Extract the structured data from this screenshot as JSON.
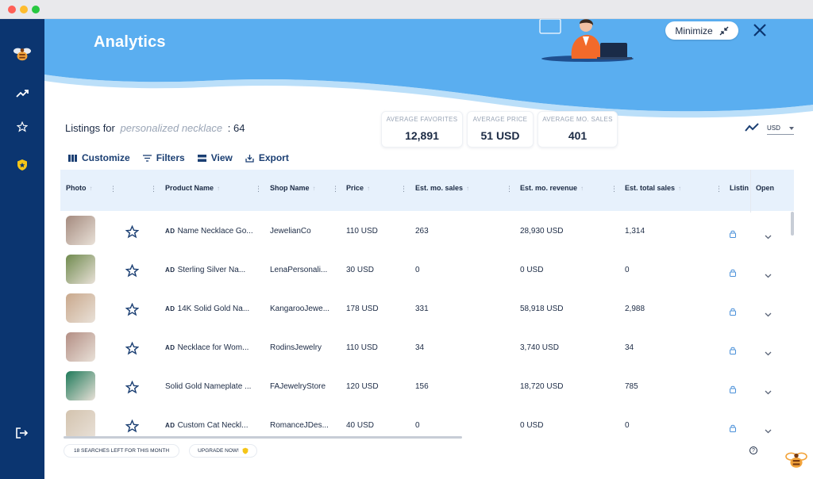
{
  "header": {
    "title": "Analytics",
    "minimize_label": "Minimize"
  },
  "listings": {
    "prefix": "Listings for",
    "keyword": "personalized necklace",
    "count": ": 64"
  },
  "stats": [
    {
      "label": "AVERAGE FAVORITES",
      "value": "12,891"
    },
    {
      "label": "AVERAGE PRICE",
      "value": "51 USD"
    },
    {
      "label": "AVERAGE MO. SALES",
      "value": "401"
    }
  ],
  "currency": "USD",
  "toolbar": {
    "customize": "Customize",
    "filters": "Filters",
    "view": "View",
    "export": "Export"
  },
  "columns": {
    "photo": "Photo",
    "product_name": "Product Name",
    "shop_name": "Shop Name",
    "price": "Price",
    "est_mo_sales": "Est. mo. sales",
    "est_mo_revenue": "Est. mo. revenue",
    "est_total_sales": "Est. total sales",
    "listing": "Listin",
    "open": "Open"
  },
  "ad_label": "AD",
  "rows": [
    {
      "ad": true,
      "product": "Name Necklace Go...",
      "shop": "JewelianCo",
      "price": "110 USD",
      "sales": "263",
      "revenue": "28,930 USD",
      "total": "1,314",
      "thumb_color": "#a48a7e"
    },
    {
      "ad": true,
      "product": "Sterling Silver Na...",
      "shop": "LenaPersonali...",
      "price": "30 USD",
      "sales": "0",
      "revenue": "0 USD",
      "total": "0",
      "thumb_color": "#6f8a4e"
    },
    {
      "ad": true,
      "product": "14K Solid Gold Na...",
      "shop": "KangarooJewe...",
      "price": "178 USD",
      "sales": "331",
      "revenue": "58,918 USD",
      "total": "2,988",
      "thumb_color": "#c9a88c"
    },
    {
      "ad": true,
      "product": "Necklace for Wom...",
      "shop": "RodinsJewelry",
      "price": "110 USD",
      "sales": "34",
      "revenue": "3,740 USD",
      "total": "34",
      "thumb_color": "#b38e84"
    },
    {
      "ad": false,
      "product": "Solid Gold Nameplate ...",
      "shop": "FAJewelryStore",
      "price": "120 USD",
      "sales": "156",
      "revenue": "18,720 USD",
      "total": "785",
      "thumb_color": "#1f7a5a"
    },
    {
      "ad": true,
      "product": "Custom Cat Neckl...",
      "shop": "RomanceJDes...",
      "price": "40 USD",
      "sales": "0",
      "revenue": "0 USD",
      "total": "0",
      "thumb_color": "#d3c3ae"
    }
  ],
  "footer": {
    "searches_left": "18 SEARCHES LEFT FOR THIS MONTH",
    "upgrade": "UPGRADE NOW!",
    "help": "?"
  },
  "icons": {
    "sidebar": [
      "bee-logo-icon",
      "trending-icon",
      "star-icon",
      "shield-icon",
      "logout-icon"
    ],
    "header": [
      "minimize-icon",
      "close-icon"
    ]
  },
  "colors": {
    "sidebar_bg": "#0b3570",
    "header_blue": "#5aaef0",
    "accent": "#1b3f73",
    "table_header": "#e7f1fc"
  }
}
